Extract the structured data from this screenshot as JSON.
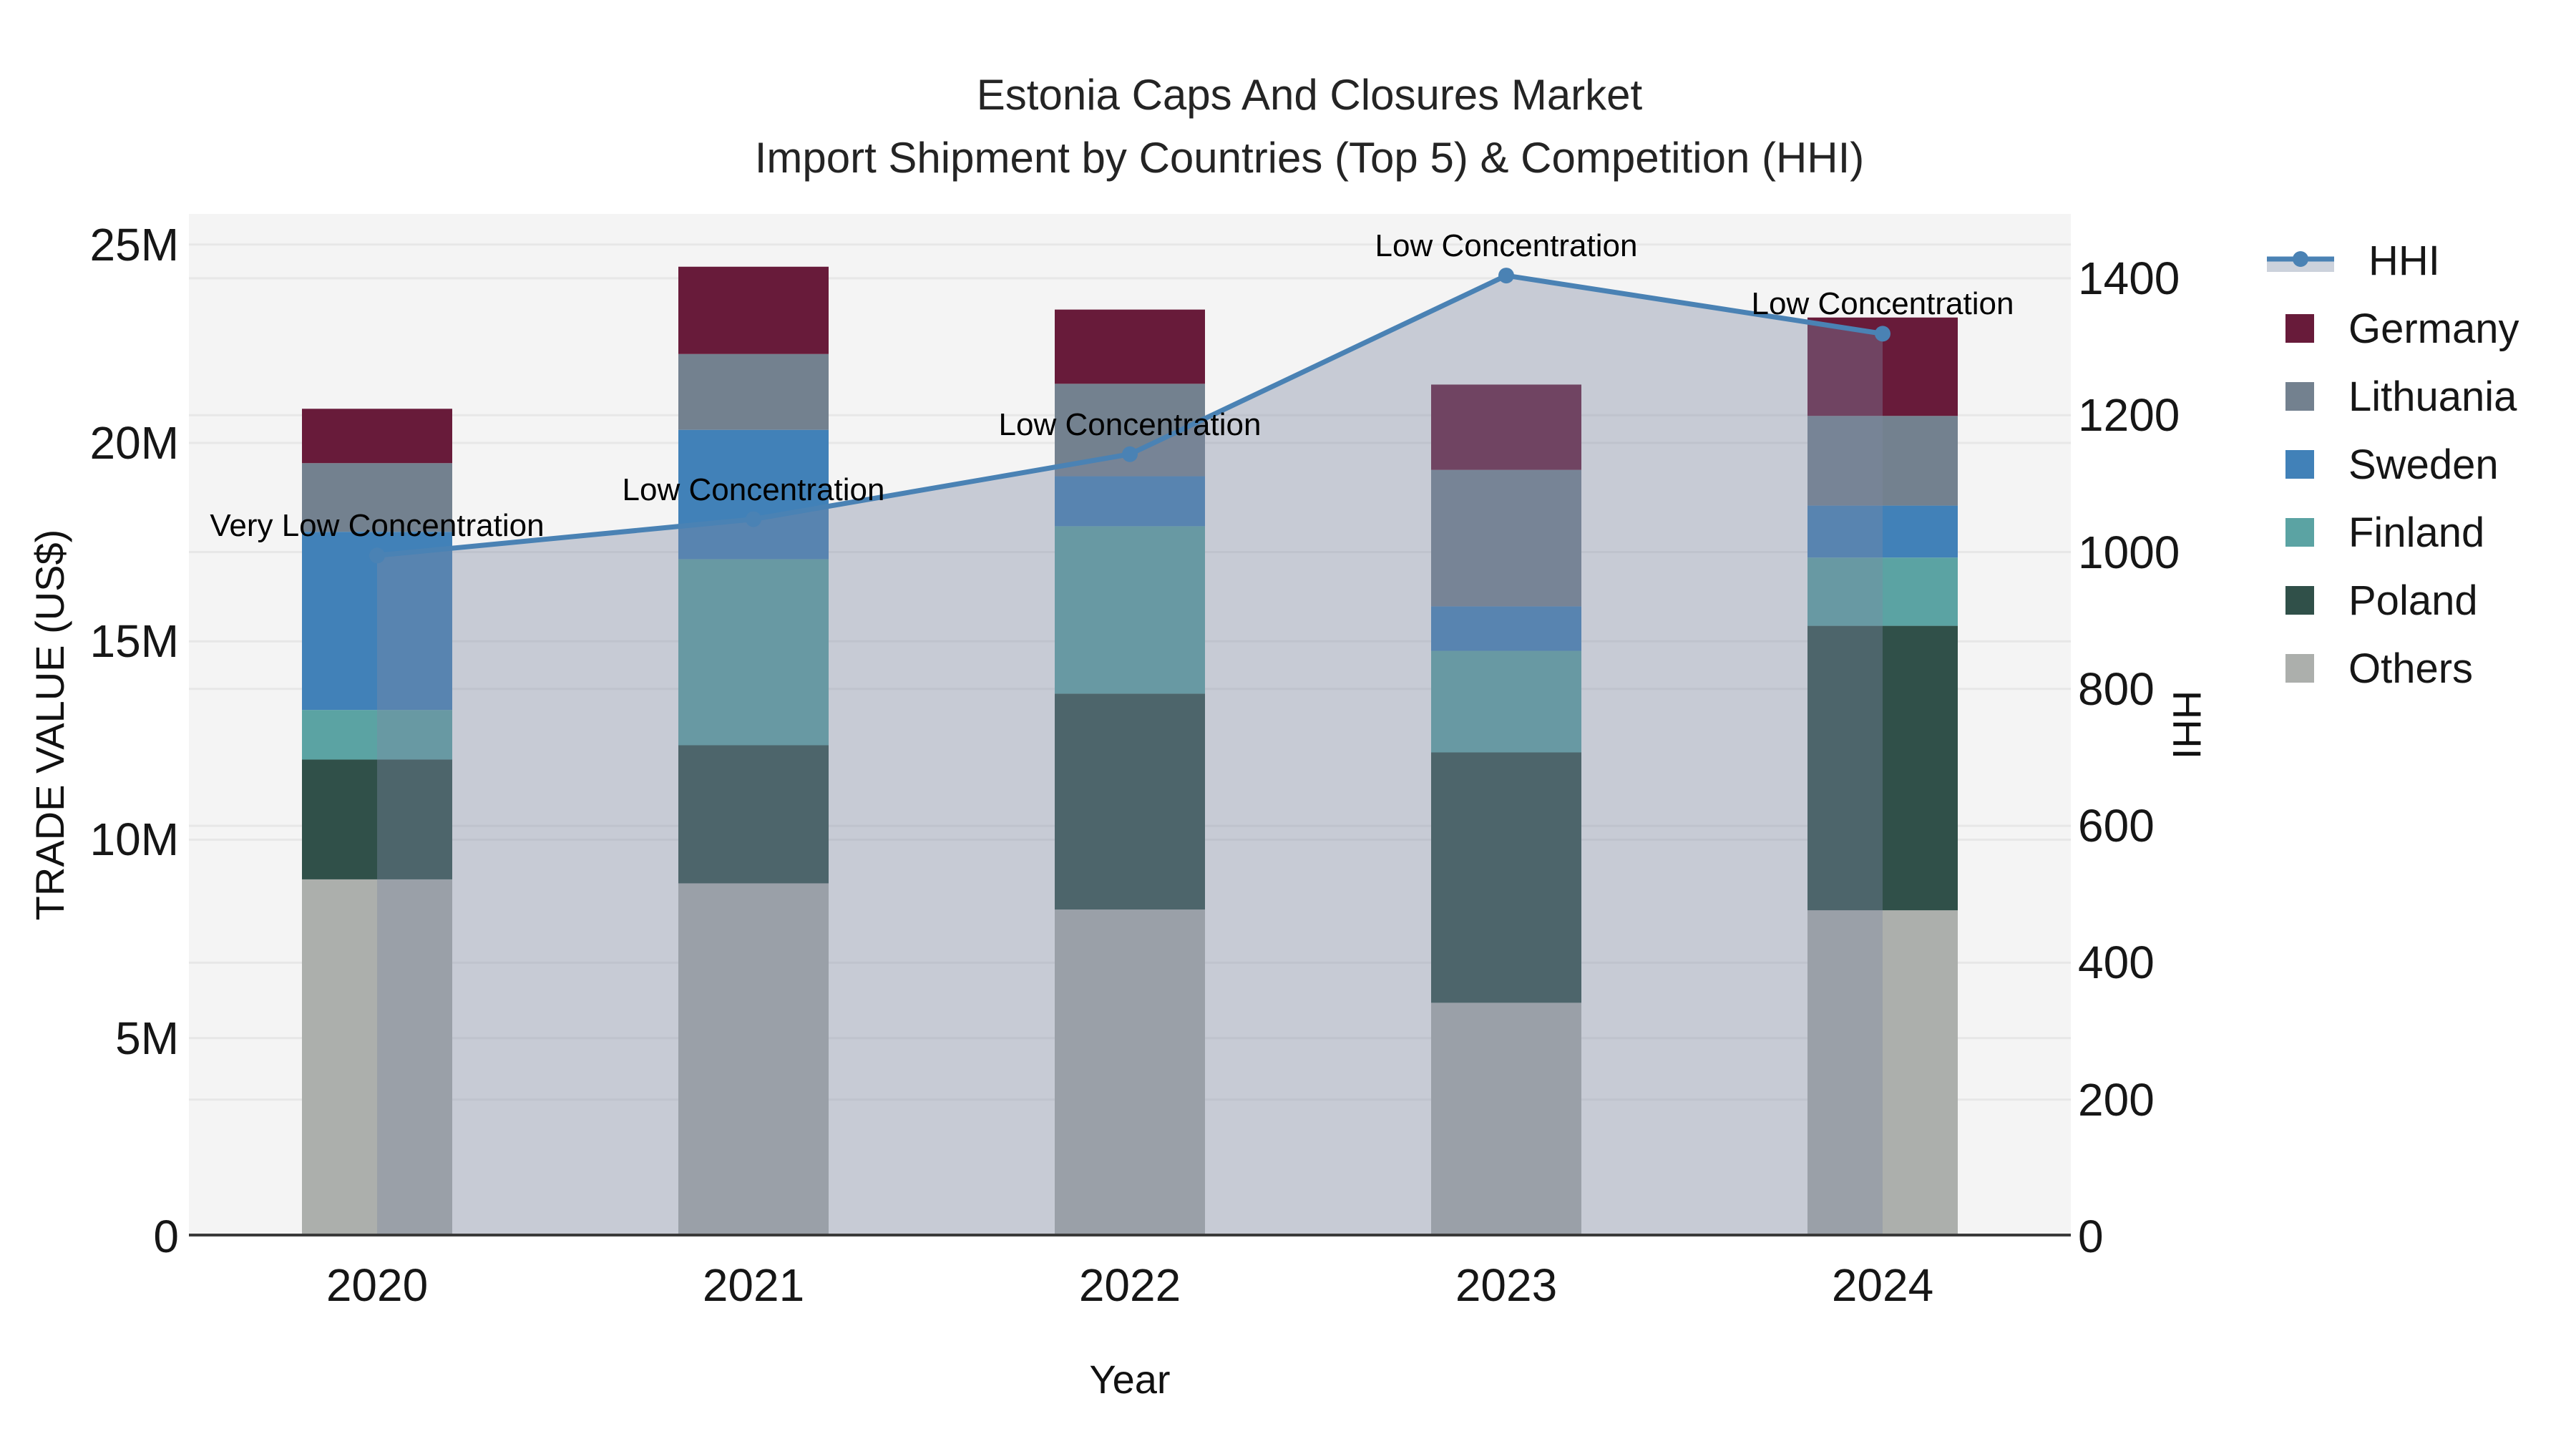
{
  "figure": {
    "title_line1": "Estonia Caps And Closures Market",
    "title_line2": "Import Shipment by Countries (Top 5) & Competition (HHI)"
  },
  "chart_data": {
    "type": "stacked-bar+line",
    "title": "Estonia Caps And Closures Market Import Shipment by Countries (Top 5) & Competition (HHI)",
    "xlabel": "Year",
    "ylabel_left": "TRADE VALUE (US$)",
    "ylabel_right": "HHI",
    "categories": [
      "2020",
      "2021",
      "2022",
      "2023",
      "2024"
    ],
    "values_unit": "million US$",
    "series": [
      {
        "name": "Germany",
        "color": "#681b3a",
        "values": [
          1.37,
          2.2,
          1.87,
          2.15,
          2.48
        ]
      },
      {
        "name": "Lithuania",
        "color": "#73818f",
        "values": [
          1.73,
          1.91,
          2.33,
          3.44,
          2.26
        ]
      },
      {
        "name": "Sweden",
        "color": "#4181b8",
        "values": [
          4.49,
          3.26,
          1.26,
          1.12,
          1.31
        ]
      },
      {
        "name": "Finland",
        "color": "#5ba3a3",
        "values": [
          1.25,
          4.69,
          4.22,
          2.56,
          1.72
        ]
      },
      {
        "name": "Poland",
        "color": "#305049",
        "values": [
          3.02,
          3.48,
          5.44,
          6.31,
          7.17
        ]
      },
      {
        "name": "Others",
        "color": "#acafac",
        "values": [
          9.0,
          8.9,
          8.24,
          5.89,
          8.22
        ]
      }
    ],
    "stack_order_bottom_to_top": [
      "Others",
      "Poland",
      "Finland",
      "Sweden",
      "Lithuania",
      "Germany"
    ],
    "bar_totals": [
      20.86,
      24.44,
      23.36,
      21.47,
      23.16
    ],
    "line_series": {
      "name": "HHI",
      "axis": "right",
      "color": "#4a82b4",
      "area_fill": "rgba(125,137,163,0.38)",
      "values": [
        995,
        1048,
        1143,
        1404,
        1319
      ]
    },
    "annotations": [
      "Very Low Concentration",
      "Low Concentration",
      "Low Concentration",
      "Low Concentration",
      "Low Concentration"
    ],
    "y_left_ticks": [
      "0",
      "5M",
      "10M",
      "15M",
      "20M",
      "25M"
    ],
    "y_left_tick_values": [
      0,
      5,
      10,
      15,
      20,
      25
    ],
    "y_left_range": [
      0,
      25.77
    ],
    "y_right_ticks": [
      "0",
      "200",
      "400",
      "600",
      "800",
      "1000",
      "1200",
      "1400"
    ],
    "y_right_tick_values": [
      0,
      200,
      400,
      600,
      800,
      1000,
      1200,
      1400
    ],
    "y_right_range": [
      0,
      1494
    ],
    "grid": true,
    "plot_bg": "#f4f4f4",
    "grid_color": "#e7e7e7",
    "axisline_color": "#3a3a3a",
    "legend_position": "right",
    "legend_area_band_color": "#ccd2dc"
  },
  "legend": {
    "entries": [
      {
        "label": "HHI",
        "type": "line"
      },
      {
        "label": "Germany",
        "type": "swatch",
        "color": "#681b3a"
      },
      {
        "label": "Lithuania",
        "type": "swatch",
        "color": "#73818f"
      },
      {
        "label": "Sweden",
        "type": "swatch",
        "color": "#4181b8"
      },
      {
        "label": "Finland",
        "type": "swatch",
        "color": "#5ba3a3"
      },
      {
        "label": "Poland",
        "type": "swatch",
        "color": "#305049"
      },
      {
        "label": "Others",
        "type": "swatch",
        "color": "#acafac"
      }
    ]
  }
}
